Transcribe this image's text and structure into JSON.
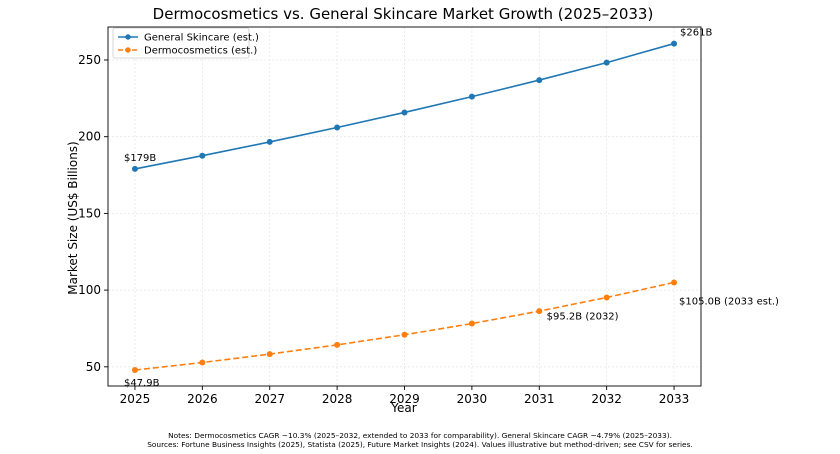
{
  "chart_data": {
    "type": "line",
    "title": "Dermocosmetics vs. General Skincare Market Growth (2025–2033)",
    "xlabel": "Year",
    "ylabel": "Market Size (US$ Billions)",
    "x": [
      2025,
      2026,
      2027,
      2028,
      2029,
      2030,
      2031,
      2032,
      2033
    ],
    "xlim": [
      2024.6,
      2033.4
    ],
    "ylim": [
      37.5,
      271.5
    ],
    "yticks": [
      50,
      100,
      150,
      200,
      250
    ],
    "grid": true,
    "legend_position": "top-left",
    "series": [
      {
        "name": "General Skincare (est.)",
        "color": "#1f77b4",
        "line_style": "solid",
        "values": [
          179.0,
          187.6,
          196.6,
          206.0,
          215.8,
          226.1,
          236.9,
          248.3,
          260.7
        ]
      },
      {
        "name": "Dermocosmetics (est.)",
        "color": "#ff7f0e",
        "line_style": "dashed",
        "values": [
          47.9,
          52.8,
          58.3,
          64.3,
          70.9,
          78.2,
          86.3,
          95.2,
          105.0
        ]
      }
    ],
    "annotations": [
      {
        "text": "$179B",
        "series": 0,
        "index": 0
      },
      {
        "text": "$261B",
        "series": 0,
        "index": 8
      },
      {
        "text": "$47.9B",
        "series": 1,
        "index": 0
      },
      {
        "text": "$95.2B (2032)",
        "series": 1,
        "index": 7
      },
      {
        "text": "$105.0B (2033 est.)",
        "series": 1,
        "index": 8
      }
    ]
  },
  "notes": {
    "line1": "Notes: Dermocosmetics CAGR ~10.3% (2025–2032, extended to 2033 for comparability). General Skincare CAGR ~4.79% (2025–2033).",
    "line2": "Sources: Fortune Business Insights (2025), Statista (2025), Future Market Insights (2024). Values illustrative but method-driven; see CSV for series."
  }
}
